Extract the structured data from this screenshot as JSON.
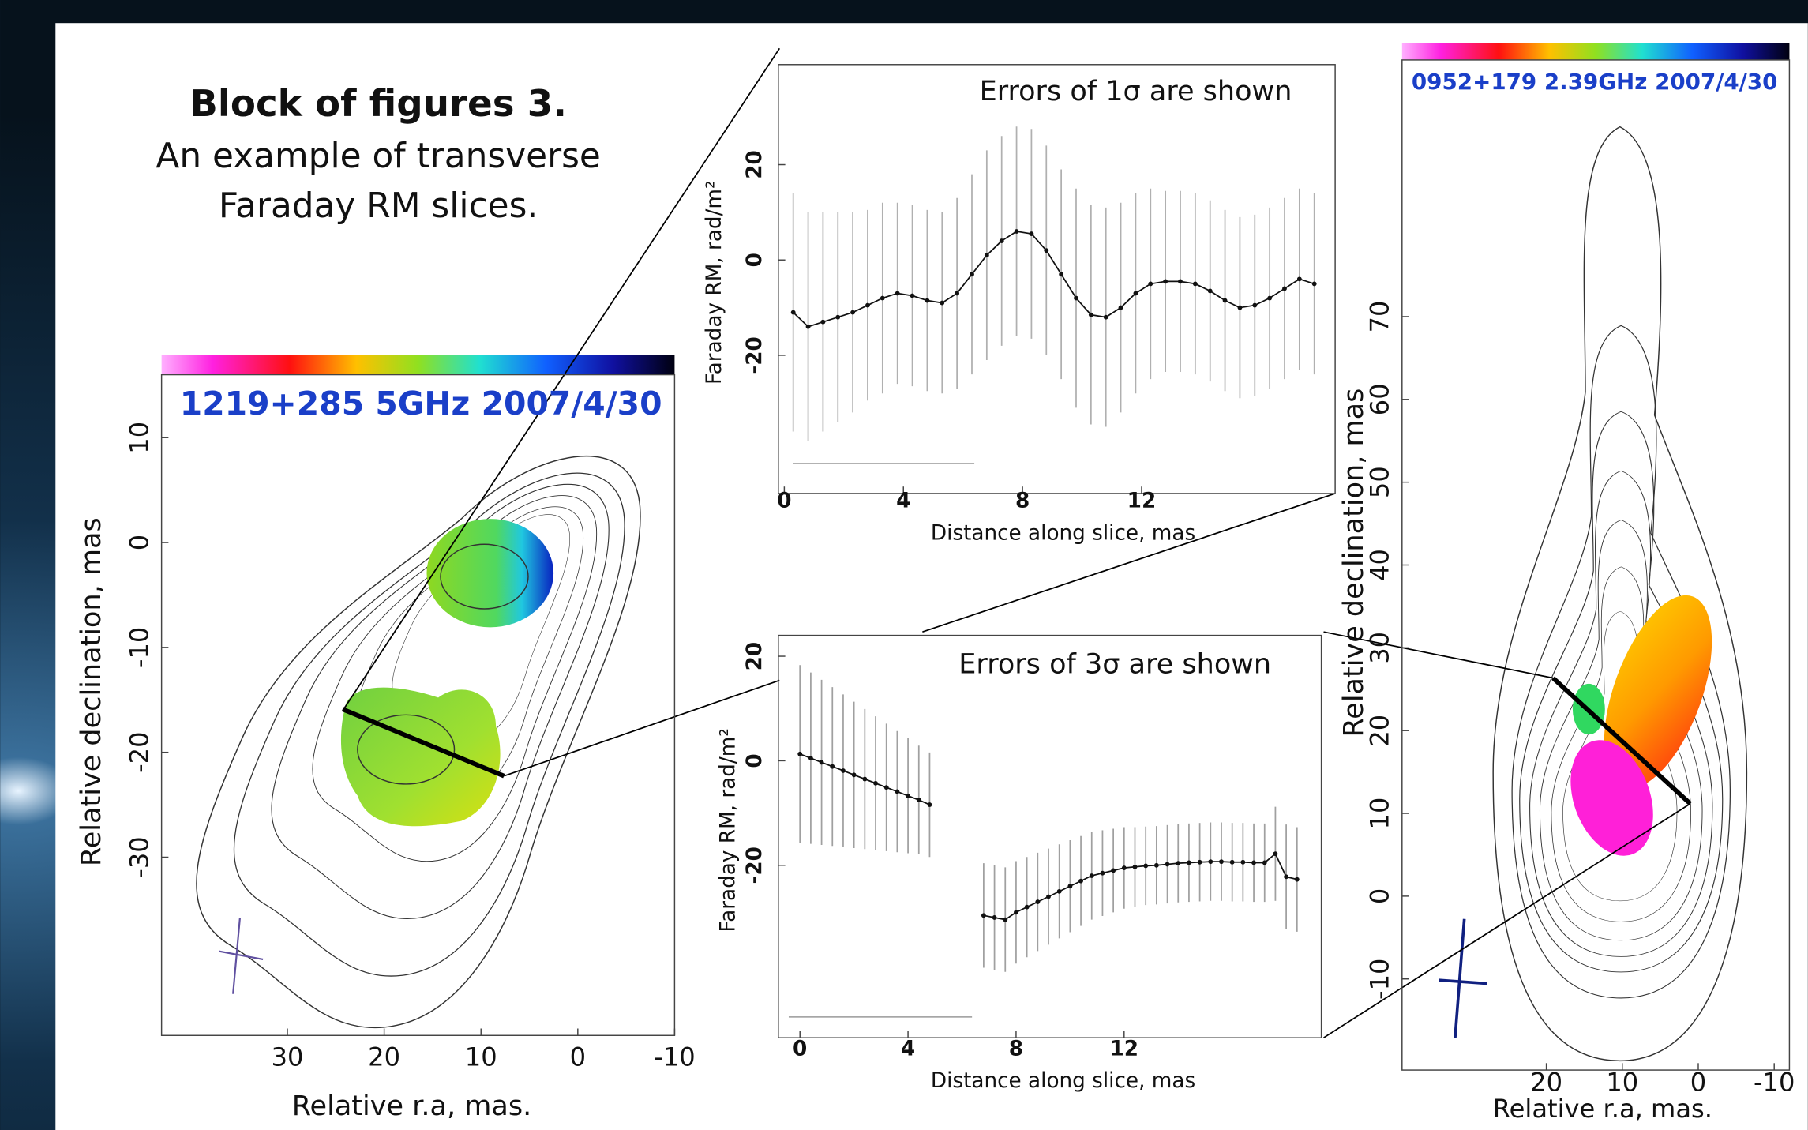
{
  "header": {
    "title": "Block of figures 3.",
    "lines": [
      "An example of transverse",
      "Faraday RM slices."
    ]
  },
  "chart_data": [
    {
      "type": "map",
      "title": "1219+285 5GHz 2007/4/30",
      "xlabel": "Relative r.a, mas.",
      "ylabel": "Relative declination, mas",
      "xlim": [
        43,
        -10
      ],
      "ylim": [
        -47,
        16
      ],
      "xticks": [
        30,
        20,
        10,
        0,
        -10
      ],
      "yticks": [
        10,
        0,
        -10,
        -20,
        -30
      ],
      "title_color": "#1a3fc8"
    },
    {
      "type": "errorbar",
      "title": "Errors of 1σ are shown",
      "xlabel": "Distance along slice, mas",
      "ylabel": "Faraday RM, rad/m²",
      "xlim": [
        -0.2,
        18.5
      ],
      "ylim": [
        -49,
        41
      ],
      "xticks": [
        0,
        4,
        8,
        12
      ],
      "yticks": [
        20,
        0,
        -20
      ],
      "color": "#111111",
      "error_color": "#b0b0b0",
      "x": [
        0.3,
        0.8,
        1.3,
        1.8,
        2.3,
        2.8,
        3.3,
        3.8,
        4.3,
        4.8,
        5.3,
        5.8,
        6.3,
        6.8,
        7.3,
        7.8,
        8.3,
        8.8,
        9.3,
        9.8,
        10.3,
        10.8,
        11.3,
        11.8,
        12.3,
        12.8,
        13.3,
        13.8,
        14.3,
        14.8,
        15.3,
        15.8,
        16.3,
        16.8,
        17.3,
        17.8
      ],
      "values": [
        -11,
        -14,
        -13,
        -12,
        -11,
        -9.5,
        -8,
        -7,
        -7.5,
        -8.5,
        -9,
        -7,
        -3,
        1,
        4,
        6,
        5.5,
        2,
        -3,
        -8,
        -11.5,
        -12,
        -10,
        -7,
        -5,
        -4.5,
        -4.5,
        -5,
        -6.5,
        -8.5,
        -10,
        -9.5,
        -8,
        -6,
        -4,
        -5
      ],
      "errors": [
        25,
        24,
        23,
        22,
        21,
        20,
        20,
        19,
        19,
        19,
        19,
        20,
        21,
        22,
        22,
        22,
        22,
        22,
        22,
        23,
        23,
        23,
        22,
        21,
        20,
        19,
        19,
        19,
        19,
        19,
        19,
        19,
        19,
        19,
        19,
        19
      ]
    },
    {
      "type": "errorbar",
      "title": "Errors of 3σ are shown",
      "xlabel": "Distance along slice, mas",
      "ylabel": "Faraday RM, rad/m²",
      "xlim": [
        -0.8,
        19.3
      ],
      "ylim": [
        -53,
        24
      ],
      "xticks": [
        0,
        4,
        8,
        12
      ],
      "yticks": [
        20,
        0,
        -20
      ],
      "color": "#111111",
      "error_color": "#a0a0a0",
      "x": [
        0,
        0.4,
        0.8,
        1.2,
        1.6,
        2.0,
        2.4,
        2.8,
        3.2,
        3.6,
        4.0,
        4.4,
        4.8,
        5.8,
        6.8,
        7.2,
        7.6,
        8.0,
        8.4,
        8.8,
        9.2,
        9.6,
        10.0,
        10.4,
        10.8,
        11.2,
        11.6,
        12.0,
        12.4,
        12.8,
        13.2,
        13.6,
        14.0,
        14.4,
        14.8,
        15.2,
        15.6,
        16.0,
        16.4,
        16.8,
        17.2,
        17.6,
        18.0,
        18.4
      ],
      "values": [
        1.3,
        0.5,
        -0.3,
        -1.1,
        -1.9,
        -2.7,
        -3.5,
        -4.3,
        -5.1,
        -5.9,
        -6.7,
        -7.5,
        -8.4,
        null,
        -29.6,
        -30,
        -30.4,
        -29,
        -28,
        -27,
        -26,
        -25,
        -24,
        -23,
        -22,
        -21.5,
        -21,
        -20.5,
        -20.3,
        -20.1,
        -20,
        -19.8,
        -19.6,
        -19.5,
        -19.4,
        -19.3,
        -19.3,
        -19.4,
        -19.4,
        -19.5,
        -19.5,
        -17.8,
        -22.2,
        -22.7
      ],
      "errors": [
        17,
        16.4,
        15.8,
        15.2,
        14.6,
        14,
        13.4,
        12.8,
        12.2,
        11.6,
        11,
        10.4,
        10,
        null,
        10,
        10,
        10,
        9.8,
        9.6,
        9.4,
        9.2,
        9,
        8.8,
        8.6,
        8.4,
        8.2,
        8,
        7.8,
        7.6,
        7.5,
        7.5,
        7.5,
        7.5,
        7.5,
        7.5,
        7.5,
        7.5,
        7.5,
        7.5,
        7.5,
        7.5,
        9,
        10,
        10
      ]
    },
    {
      "type": "map",
      "title": "0952+179 2.39GHz 2007/4/30",
      "xlabel": "Relative r.a, mas.",
      "ylabel": "Relative declination, mas",
      "xlim": [
        39,
        -12
      ],
      "ylim": [
        -21,
        101
      ],
      "xticks": [
        20,
        10,
        0,
        -10
      ],
      "yticks": [
        70,
        60,
        50,
        40,
        30,
        20,
        10,
        0,
        -10
      ],
      "title_color": "#1a3fc8"
    }
  ]
}
